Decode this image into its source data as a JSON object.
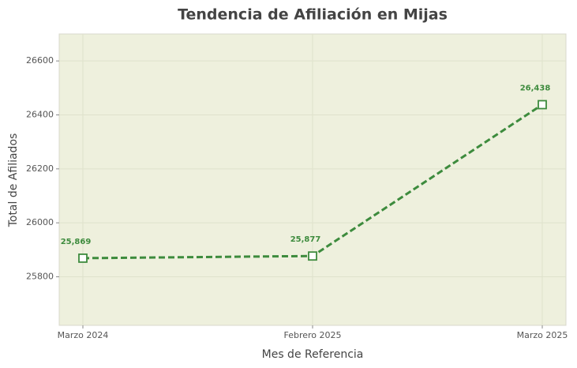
{
  "chart_data": {
    "type": "line",
    "title": "Tendencia de Afiliación en Mijas",
    "x_label": "Mes de Referencia",
    "y_label": "Total de Afiliados",
    "categories": [
      "Marzo 2024",
      "Febrero 2025",
      "Marzo 2025"
    ],
    "series": [
      {
        "name": "Total de Afiliados",
        "color": "#3d8b3d",
        "values": [
          25869,
          25877,
          26438
        ],
        "value_labels": [
          "25,869",
          "25,877",
          "26,438"
        ]
      }
    ],
    "ylim": [
      25620,
      26700
    ],
    "yticks": [
      25800,
      26000,
      26200,
      26400,
      26600
    ],
    "grid": true
  }
}
